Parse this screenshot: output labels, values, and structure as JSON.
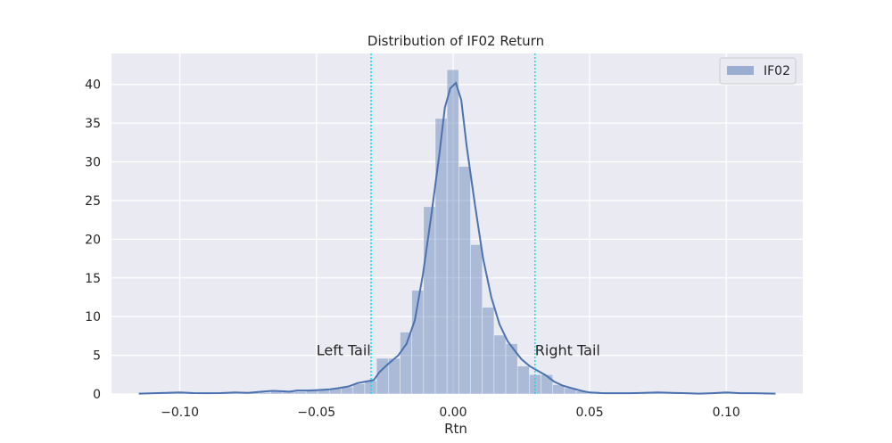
{
  "chart_data": {
    "type": "bar",
    "title": "Distribution of IF02 Return",
    "xlabel": "Rtn",
    "ylabel": "",
    "xlim": [
      -0.125,
      0.128
    ],
    "ylim": [
      0,
      44
    ],
    "x_ticks": [
      -0.1,
      -0.05,
      0.0,
      0.05,
      0.1
    ],
    "x_tick_labels": [
      "−0.10",
      "−0.05",
      "0.00",
      "0.05",
      "0.10"
    ],
    "y_ticks": [
      0,
      5,
      10,
      15,
      20,
      25,
      30,
      35,
      40
    ],
    "y_tick_labels": [
      "0",
      "5",
      "10",
      "15",
      "20",
      "25",
      "30",
      "35",
      "40"
    ],
    "grid": true,
    "legend_position": "top-right",
    "series": [
      {
        "name": "IF02",
        "kind": "histogram",
        "bin_width": 0.0043,
        "bins": [
          {
            "x0": -0.114,
            "h": 0.1
          },
          {
            "x0": -0.1097,
            "h": 0.1
          },
          {
            "x0": -0.1054,
            "h": 0.2
          },
          {
            "x0": -0.1011,
            "h": 0.2
          },
          {
            "x0": -0.0968,
            "h": 0.1
          },
          {
            "x0": -0.0925,
            "h": 0.1
          },
          {
            "x0": -0.0882,
            "h": 0.1
          },
          {
            "x0": -0.0839,
            "h": 0.2
          },
          {
            "x0": -0.0796,
            "h": 0.1
          },
          {
            "x0": -0.0753,
            "h": 0.2
          },
          {
            "x0": -0.071,
            "h": 0.2
          },
          {
            "x0": -0.0667,
            "h": 0.3
          },
          {
            "x0": -0.0624,
            "h": 0.4
          },
          {
            "x0": -0.0581,
            "h": 0.3
          },
          {
            "x0": -0.0538,
            "h": 0.5
          },
          {
            "x0": -0.0495,
            "h": 0.5
          },
          {
            "x0": -0.0452,
            "h": 0.7
          },
          {
            "x0": -0.0409,
            "h": 0.9
          },
          {
            "x0": -0.0366,
            "h": 1.3
          },
          {
            "x0": -0.0323,
            "h": 1.7
          },
          {
            "x0": -0.028,
            "h": 4.6
          },
          {
            "x0": -0.0237,
            "h": 4.6
          },
          {
            "x0": -0.0194,
            "h": 8.0
          },
          {
            "x0": -0.0151,
            "h": 13.4
          },
          {
            "x0": -0.0108,
            "h": 24.2
          },
          {
            "x0": -0.0065,
            "h": 35.6
          },
          {
            "x0": -0.0022,
            "h": 41.9
          },
          {
            "x0": 0.0021,
            "h": 29.4
          },
          {
            "x0": 0.0064,
            "h": 19.3
          },
          {
            "x0": 0.0107,
            "h": 11.2
          },
          {
            "x0": 0.015,
            "h": 7.6
          },
          {
            "x0": 0.0193,
            "h": 6.5
          },
          {
            "x0": 0.0236,
            "h": 3.6
          },
          {
            "x0": 0.0279,
            "h": 2.5
          },
          {
            "x0": 0.0322,
            "h": 2.5
          },
          {
            "x0": 0.0365,
            "h": 1.2
          },
          {
            "x0": 0.0408,
            "h": 0.8
          },
          {
            "x0": 0.0451,
            "h": 0.4
          },
          {
            "x0": 0.0494,
            "h": 0.3
          },
          {
            "x0": 0.0537,
            "h": 0.2
          },
          {
            "x0": 0.058,
            "h": 0.2
          },
          {
            "x0": 0.0623,
            "h": 0.1
          },
          {
            "x0": 0.0666,
            "h": 0.1
          },
          {
            "x0": 0.0709,
            "h": 0.2
          },
          {
            "x0": 0.0752,
            "h": 0.2
          },
          {
            "x0": 0.0795,
            "h": 0.1
          },
          {
            "x0": 0.0838,
            "h": 0.1
          },
          {
            "x0": 0.0881,
            "h": 0.1
          },
          {
            "x0": 0.0924,
            "h": 0.1
          },
          {
            "x0": 0.0967,
            "h": 0.2
          },
          {
            "x0": 0.101,
            "h": 0.1
          },
          {
            "x0": 0.1053,
            "h": 0.1
          },
          {
            "x0": 0.1096,
            "h": 0.1
          },
          {
            "x0": 0.1139,
            "h": 0.1
          }
        ],
        "kde": [
          [
            -0.115,
            0.05
          ],
          [
            -0.105,
            0.15
          ],
          [
            -0.1,
            0.2
          ],
          [
            -0.095,
            0.12
          ],
          [
            -0.09,
            0.1
          ],
          [
            -0.085,
            0.12
          ],
          [
            -0.08,
            0.2
          ],
          [
            -0.075,
            0.15
          ],
          [
            -0.07,
            0.3
          ],
          [
            -0.066,
            0.4
          ],
          [
            -0.062,
            0.35
          ],
          [
            -0.06,
            0.3
          ],
          [
            -0.057,
            0.45
          ],
          [
            -0.053,
            0.45
          ],
          [
            -0.05,
            0.5
          ],
          [
            -0.045,
            0.6
          ],
          [
            -0.042,
            0.75
          ],
          [
            -0.038,
            1.0
          ],
          [
            -0.035,
            1.4
          ],
          [
            -0.032,
            1.6
          ],
          [
            -0.029,
            1.8
          ],
          [
            -0.027,
            2.8
          ],
          [
            -0.024,
            3.8
          ],
          [
            -0.02,
            5.0
          ],
          [
            -0.017,
            6.5
          ],
          [
            -0.014,
            9.5
          ],
          [
            -0.011,
            15.5
          ],
          [
            -0.008,
            23.0
          ],
          [
            -0.005,
            31.0
          ],
          [
            -0.003,
            37.0
          ],
          [
            -0.001,
            39.5
          ],
          [
            0.001,
            40.2
          ],
          [
            0.003,
            38.0
          ],
          [
            0.005,
            32.0
          ],
          [
            0.008,
            24.5
          ],
          [
            0.011,
            17.5
          ],
          [
            0.014,
            12.5
          ],
          [
            0.017,
            9.0
          ],
          [
            0.02,
            6.8
          ],
          [
            0.023,
            5.4
          ],
          [
            0.025,
            4.5
          ],
          [
            0.028,
            3.6
          ],
          [
            0.031,
            3.0
          ],
          [
            0.034,
            2.4
          ],
          [
            0.037,
            1.6
          ],
          [
            0.04,
            1.1
          ],
          [
            0.043,
            0.8
          ],
          [
            0.047,
            0.4
          ],
          [
            0.05,
            0.2
          ],
          [
            0.055,
            0.1
          ],
          [
            0.06,
            0.1
          ],
          [
            0.065,
            0.1
          ],
          [
            0.07,
            0.15
          ],
          [
            0.075,
            0.2
          ],
          [
            0.08,
            0.15
          ],
          [
            0.085,
            0.1
          ],
          [
            0.09,
            0.05
          ],
          [
            0.095,
            0.1
          ],
          [
            0.1,
            0.2
          ],
          [
            0.105,
            0.1
          ],
          [
            0.11,
            0.1
          ],
          [
            0.118,
            0.05
          ]
        ]
      }
    ],
    "vlines": [
      {
        "x": -0.03,
        "label": "Left Tail",
        "label_x": -0.05,
        "label_y": 5.0,
        "color": "#00e5ee",
        "style": "dotted"
      },
      {
        "x": 0.03,
        "label": "Right Tail",
        "label_x": 0.03,
        "label_y": 5.0,
        "color": "#00e5ee",
        "style": "dotted"
      }
    ],
    "colors": {
      "background": "#eaeaf2",
      "grid": "#ffffff",
      "bar_fill": "#4c72b0",
      "bar_opacity": 0.4,
      "kde_line": "#4c72b0",
      "tail_line": "#00e5ee"
    }
  }
}
